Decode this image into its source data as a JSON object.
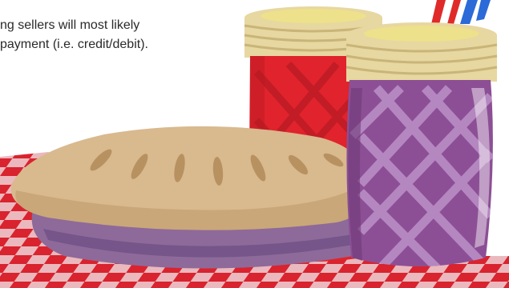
{
  "caption": {
    "line1": "ng sellers will most likely",
    "line2": "payment (i.e. credit/debit)."
  },
  "illustration": {
    "items": [
      "checkered-tablecloth",
      "pie",
      "red-jam-jar",
      "purple-jam-jar",
      "striped-straw"
    ],
    "colors": {
      "tablecloth_red": "#d9232e",
      "tablecloth_white": "#eef0f5",
      "pie_crust": "#d9b98e",
      "pie_crust_shadow": "#c9a779",
      "pie_slit": "#b89160",
      "pie_dish": "#8e6a9a",
      "red_jar": "#e0232c",
      "red_jar_dark": "#b81b24",
      "purple_jar": "#8c4f95",
      "purple_jar_light": "#b487c0",
      "lid_gold": "#e7d7a1",
      "lid_gold_dark": "#c9b578",
      "lid_yellow": "#ede18b",
      "straw_blue": "#2c6ad8",
      "straw_red": "#e02a2a"
    }
  }
}
